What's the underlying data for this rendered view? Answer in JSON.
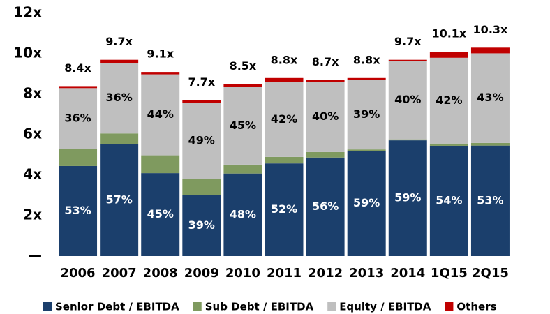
{
  "chart_data": {
    "type": "stacked_bar",
    "categories": [
      "2006",
      "2007",
      "2008",
      "2009",
      "2010",
      "2011",
      "2012",
      "2013",
      "2014",
      "1Q15",
      "2Q15"
    ],
    "series": [
      {
        "name": "Senior Debt / EBITDA",
        "color": "#1b3f6c",
        "values": [
          4.45,
          5.53,
          4.1,
          3.0,
          4.08,
          4.58,
          4.87,
          5.19,
          5.72,
          5.45,
          5.46
        ],
        "share_labels": [
          "53%",
          "57%",
          "45%",
          "39%",
          "48%",
          "52%",
          "56%",
          "59%",
          "59%",
          "54%",
          "53%"
        ]
      },
      {
        "name": "Sub Debt / EBITDA",
        "color": "#7f9a5f",
        "values": [
          0.83,
          0.53,
          0.88,
          0.81,
          0.44,
          0.32,
          0.27,
          0.08,
          0.05,
          0.11,
          0.13
        ]
      },
      {
        "name": "Equity / EBITDA",
        "color": "#bfbfbf",
        "values": [
          3.02,
          3.49,
          4.0,
          3.77,
          3.83,
          3.7,
          3.48,
          3.43,
          3.88,
          4.24,
          4.43
        ],
        "share_labels": [
          "36%",
          "36%",
          "44%",
          "49%",
          "45%",
          "42%",
          "40%",
          "39%",
          "40%",
          "42%",
          "43%"
        ]
      },
      {
        "name": "Others",
        "color": "#c00000",
        "values": [
          0.1,
          0.15,
          0.12,
          0.12,
          0.15,
          0.2,
          0.08,
          0.1,
          0.05,
          0.3,
          0.28
        ]
      }
    ],
    "total_labels": [
      "8.4x",
      "9.7x",
      "9.1x",
      "7.7x",
      "8.5x",
      "8.8x",
      "8.7x",
      "8.8x",
      "9.7x",
      "10.1x",
      "10.3x"
    ],
    "ylim": [
      0,
      12
    ],
    "yticks": [
      {
        "value": 0,
        "label": "—"
      },
      {
        "value": 2,
        "label": "2x"
      },
      {
        "value": 4,
        "label": "4x"
      },
      {
        "value": 6,
        "label": "6x"
      },
      {
        "value": 8,
        "label": "8x"
      },
      {
        "value": 10,
        "label": "10x"
      },
      {
        "value": 12,
        "label": "12x"
      }
    ],
    "grid": false,
    "legend": "bottom"
  }
}
